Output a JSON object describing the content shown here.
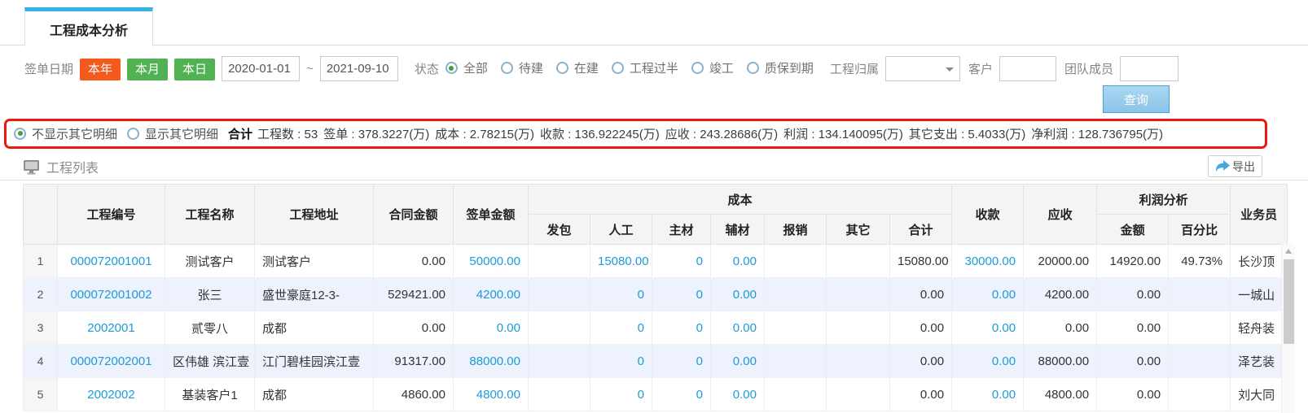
{
  "colors": {
    "accent_blue": "#1d9bd8",
    "tab_top": "#34b3ea",
    "orange": "#f4591d",
    "green": "#52b152",
    "red_border": "#ec1a0e"
  },
  "tab": {
    "title": "工程成本分析"
  },
  "filters": {
    "date_label": "签单日期",
    "quick_buttons": [
      {
        "label": "本年",
        "color": "#f4591d"
      },
      {
        "label": "本月",
        "color": "#52b152"
      },
      {
        "label": "本日",
        "color": "#52b152"
      }
    ],
    "date_from": "2020-01-01",
    "date_separator": "~",
    "date_to": "2021-09-10",
    "status_label": "状态",
    "status_options": [
      {
        "label": "全部",
        "selected": true
      },
      {
        "label": "待建",
        "selected": false
      },
      {
        "label": "在建",
        "selected": false
      },
      {
        "label": "工程过半",
        "selected": false
      },
      {
        "label": "竣工",
        "selected": false
      },
      {
        "label": "质保到期",
        "selected": false
      }
    ],
    "ownership_label": "工程归属",
    "ownership_value": "",
    "customer_label": "客户",
    "customer_value": "",
    "team_label": "团队成员",
    "team_value": "",
    "search_button": "查询"
  },
  "summary": {
    "detail_options": [
      {
        "label": "不显示其它明细",
        "selected": true
      },
      {
        "label": "显示其它明细",
        "selected": false
      }
    ],
    "total_label": "合计",
    "totals": [
      {
        "label": "工程数",
        "value": "53"
      },
      {
        "label": "签单",
        "value": "378.3227(万)"
      },
      {
        "label": "成本",
        "value": "2.78215(万)"
      },
      {
        "label": "收款",
        "value": "136.922245(万)"
      },
      {
        "label": "应收",
        "value": "243.28686(万)"
      },
      {
        "label": "利润",
        "value": "134.140095(万)"
      },
      {
        "label": "其它支出",
        "value": "5.4033(万)"
      },
      {
        "label": "净利润",
        "value": "128.736795(万)"
      }
    ]
  },
  "section": {
    "title": "工程列表",
    "export_label": "导出"
  },
  "table": {
    "group_headers": {
      "cost": "成本",
      "profit": "利润分析"
    },
    "columns": [
      "",
      "工程编号",
      "工程名称",
      "工程地址",
      "合同金额",
      "签单金额",
      "发包",
      "人工",
      "主材",
      "辅材",
      "报销",
      "其它",
      "合计",
      "收款",
      "应收",
      "金额",
      "百分比",
      "业务员"
    ],
    "rows": [
      [
        "1",
        "000072001001",
        "测试客户",
        "测试客户",
        "0.00",
        "50000.00",
        "",
        "15080.00",
        "0",
        "0.00",
        "",
        "",
        "15080.00",
        "30000.00",
        "20000.00",
        "14920.00",
        "49.73%",
        "长沙顶"
      ],
      [
        "2",
        "000072001002",
        "张三",
        "盛世豪庭12-3-",
        "529421.00",
        "4200.00",
        "",
        "0",
        "0",
        "0.00",
        "",
        "",
        "0.00",
        "0.00",
        "4200.00",
        "0.00",
        "",
        "一城山"
      ],
      [
        "3",
        "2002001",
        "贰零八",
        "成都",
        "0.00",
        "0.00",
        "",
        "0",
        "0",
        "0.00",
        "",
        "",
        "0.00",
        "0.00",
        "0.00",
        "0.00",
        "",
        "轻舟装"
      ],
      [
        "4",
        "000072002001",
        "区伟雄 滨江壹",
        "江门碧桂园滨江壹",
        "91317.00",
        "88000.00",
        "",
        "0",
        "0",
        "0.00",
        "",
        "",
        "0.00",
        "0.00",
        "88000.00",
        "0.00",
        "",
        "泽艺装"
      ],
      [
        "5",
        "2002002",
        "基装客户1",
        "成都",
        "4860.00",
        "4800.00",
        "",
        "0",
        "0",
        "0.00",
        "",
        "",
        "0.00",
        "0.00",
        "4800.00",
        "0.00",
        "",
        "刘大同"
      ]
    ]
  }
}
